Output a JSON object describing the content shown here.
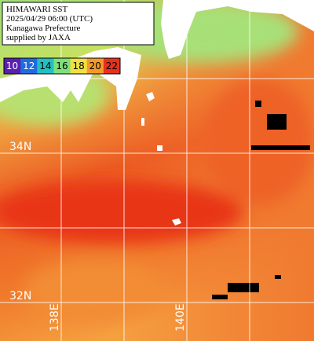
{
  "header": {
    "lines": [
      "HIMAWARI SST",
      "2025/04/29 06:00 (UTC)",
      "Kanagawa Prefecture",
      "supplied by JAXA"
    ]
  },
  "colorbar": {
    "ticks": [
      10,
      12,
      14,
      16,
      18,
      20,
      22
    ],
    "colors": [
      "#5a1fb0",
      "#1f6ae0",
      "#22c0c0",
      "#7fe07a",
      "#f0e040",
      "#f59a2a",
      "#e8301c"
    ]
  },
  "grid": {
    "lat_labels": [
      "34N",
      "32N"
    ],
    "lon_labels": [
      "138E",
      "140E"
    ]
  }
}
